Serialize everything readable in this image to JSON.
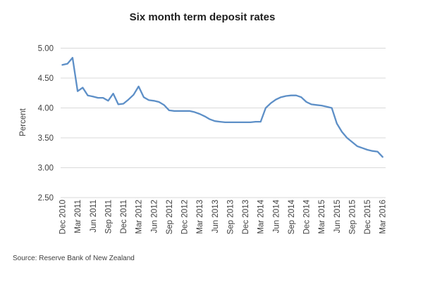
{
  "header": {
    "title": "Six month term deposit rates"
  },
  "footer": {
    "source_label": "Source: Reserve Bank of New Zealand"
  },
  "colors": {
    "line": "#5d8fc7",
    "gridline": "#d9d9d9",
    "axis_text": "#404040",
    "title_text": "#1f1f1f",
    "background": "#ffffff"
  },
  "chart_data": {
    "type": "line",
    "title": "Six month term deposit rates",
    "xlabel": "",
    "ylabel": "Percent",
    "ylim": [
      2.5,
      5.0
    ],
    "ytick_step": 0.5,
    "ytick_labels": [
      "5.00",
      "4.50",
      "4.00",
      "3.50",
      "3.00",
      "2.50"
    ],
    "grid": true,
    "legend_position": "none",
    "frequency": "monthly",
    "x_start": "Dec 2010",
    "x_end": "Mar 2016",
    "xtick_every_months": 3,
    "xtick_labels": [
      "Dec 2010",
      "Mar 2011",
      "Jun 2011",
      "Sep 2011",
      "Dec 2011",
      "Mar 2012",
      "Jun 2012",
      "Sep 2012",
      "Dec 2012",
      "Mar 2013",
      "Jun 2013",
      "Sep 2013",
      "Dec 2013",
      "Mar 2014",
      "Jun 2014",
      "Sep 2014",
      "Dec 2014",
      "Mar 2015",
      "Jun 2015",
      "Sep 2015",
      "Dec 2015",
      "Mar 2016"
    ],
    "series": [
      {
        "name": "Six month term deposit rate",
        "values": [
          4.72,
          4.74,
          4.84,
          4.28,
          4.34,
          4.21,
          4.19,
          4.17,
          4.17,
          4.12,
          4.24,
          4.06,
          4.07,
          4.14,
          4.22,
          4.36,
          4.18,
          4.13,
          4.12,
          4.1,
          4.05,
          3.96,
          3.95,
          3.95,
          3.95,
          3.95,
          3.93,
          3.9,
          3.86,
          3.81,
          3.78,
          3.77,
          3.76,
          3.76,
          3.76,
          3.76,
          3.76,
          3.76,
          3.77,
          3.77,
          4.0,
          4.08,
          4.14,
          4.18,
          4.2,
          4.21,
          4.21,
          4.18,
          4.1,
          4.06,
          4.05,
          4.04,
          4.02,
          4.0,
          3.74,
          3.6,
          3.5,
          3.43,
          3.36,
          3.33,
          3.3,
          3.28,
          3.27,
          3.18
        ]
      }
    ]
  }
}
